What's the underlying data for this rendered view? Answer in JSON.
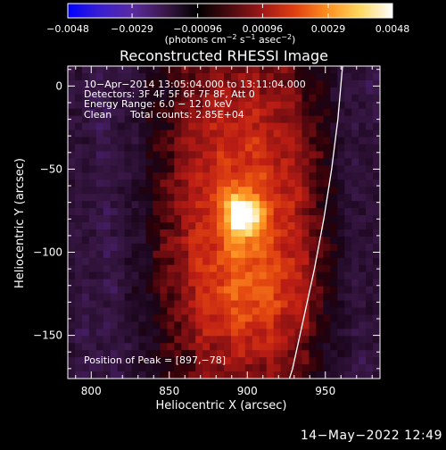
{
  "chart_data": {
    "type": "heatmap",
    "title": "Reconstructed RHESSI Image",
    "xlabel": "Heliocentric X (arcsec)",
    "ylabel": "Heliocentric Y (arcsec)",
    "xlim": [
      785,
      985
    ],
    "ylim": [
      -176,
      12
    ],
    "xticks": [
      800,
      850,
      900,
      950
    ],
    "yticks": [
      0,
      -50,
      -100,
      -150
    ],
    "xtick_labels": [
      "800",
      "850",
      "900",
      "950"
    ],
    "ytick_labels": [
      "0",
      "−50",
      "−100",
      "−150"
    ],
    "colorbar": {
      "range": [
        -0.0048,
        0.0048
      ],
      "ticks": [
        -0.0048,
        -0.0029,
        -0.00096,
        0.00096,
        0.0029,
        0.0048
      ],
      "tick_labels": [
        "−0.0048",
        "−0.0029",
        "−0.00096",
        "0.00096",
        "0.0029",
        "0.0048"
      ],
      "units_prefix": "(photons cm",
      "units_exp1": "−2",
      "units_mid1": " s",
      "units_exp2": "−1",
      "units_mid2": " asec",
      "units_exp3": "−2",
      "units_suffix": ")",
      "colors": [
        "#0000ff",
        "#3a1fd0",
        "#5a2aa0",
        "#3a1848",
        "#000000",
        "#4a0a10",
        "#a01818",
        "#e04010",
        "#ff9020",
        "#ffd860",
        "#ffffff"
      ]
    },
    "annotations": [
      "10−Apr−2014 13:05:04.000 to 13:11:04.000",
      "Detectors: 3F 4F 5F 6F 7F 8F, Att 0",
      "Energy Range: 6.0 − 12.0 keV",
      "Clean",
      "Total counts: 2.85E+04"
    ],
    "peak_text": "Position of Peak = [897,−78]",
    "peak": [
      897,
      -78
    ],
    "limb_curve": [
      [
        961,
        12
      ],
      [
        958,
        -20
      ],
      [
        954,
        -50
      ],
      [
        949,
        -80
      ],
      [
        943,
        -110
      ],
      [
        936,
        -140
      ],
      [
        929,
        -170
      ],
      [
        927,
        -176
      ]
    ]
  },
  "footer": {
    "timestamp": "14−May−2022 12:49"
  }
}
